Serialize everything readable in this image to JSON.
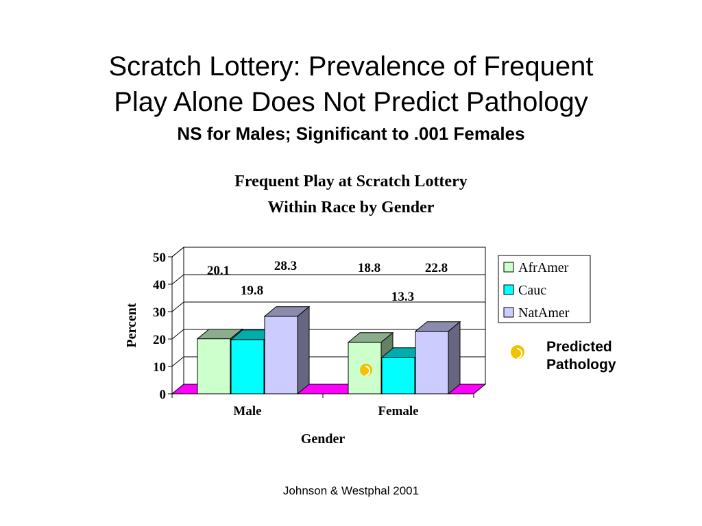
{
  "slide": {
    "title_line1": "Scratch Lottery: Prevalence of Frequent",
    "title_line2": "Play Alone Does Not Predict Pathology",
    "subtitle": "NS for Males; Significant to .001 Females",
    "source": "Johnson & Westphal 2001",
    "annotation": {
      "label": "Predicted\nPathology",
      "icon": "moon-bullet-icon",
      "color": "#f2c200",
      "marked_bar": {
        "category": "Female",
        "series": "AfrAmer"
      }
    }
  },
  "chart_data": {
    "type": "bar",
    "title_line1": "Frequent Play at Scratch Lottery",
    "title_line2": "Within Race by Gender",
    "xlabel": "Gender",
    "ylabel": "Percent",
    "categories": [
      "Male",
      "Female"
    ],
    "series": [
      {
        "name": "AfrAmer",
        "values": [
          20.1,
          18.8
        ],
        "color": "#ccffcc"
      },
      {
        "name": "Cauc",
        "values": [
          19.8,
          13.3
        ],
        "color": "#00ffff"
      },
      {
        "name": "NatAmer",
        "values": [
          28.3,
          22.8
        ],
        "color": "#ccccff"
      }
    ],
    "ylim": [
      0,
      50
    ],
    "yticks": [
      0,
      10,
      20,
      30,
      40,
      50
    ],
    "grid": true,
    "three_d": true,
    "floor_color": "#ff00ff",
    "legend": "right"
  }
}
